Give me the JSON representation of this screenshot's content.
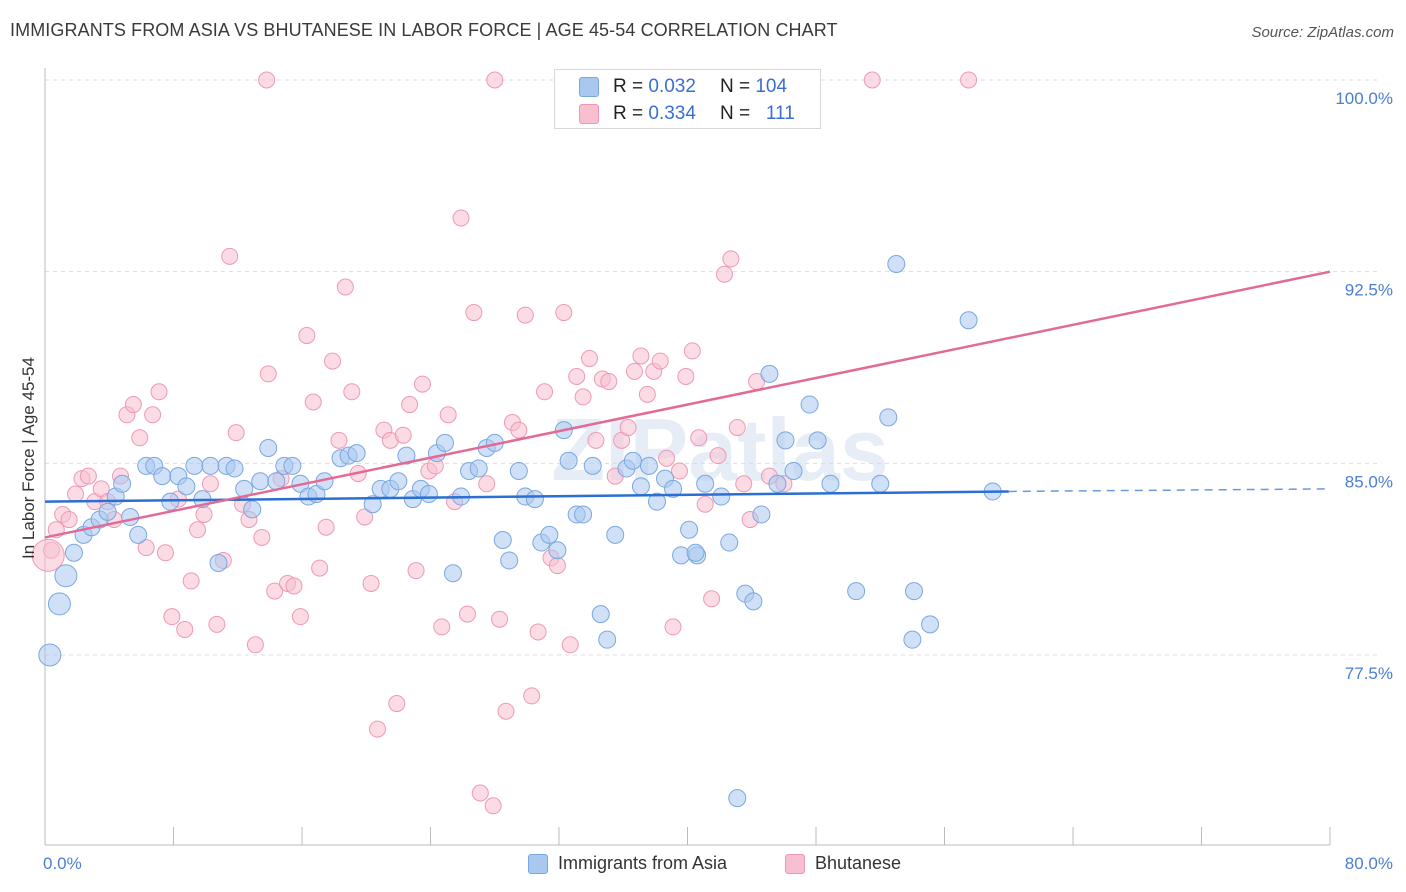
{
  "title": "IMMIGRANTS FROM ASIA VS BHUTANESE IN LABOR FORCE | AGE 45-54 CORRELATION CHART",
  "source": "Source: ZipAtlas.com",
  "watermark": "ZIPatlas",
  "legend": {
    "series1": {
      "r_label": "R =",
      "r_value": "0.032",
      "n_label": "N =",
      "n_value": "104"
    },
    "series2": {
      "r_label": "R =",
      "r_value": "0.334",
      "n_label": "N =",
      "n_value": "111"
    }
  },
  "colors": {
    "asia_fill": "#a9c8f0",
    "asia_stroke": "#7aa7e0",
    "asia_line": "#2a6fd1",
    "bhutan_fill": "#f7bfd0",
    "bhutan_stroke": "#ee99b4",
    "bhutan_line": "#e26a95",
    "tick_text": "#4a7fd0",
    "grid": "#dddddd"
  },
  "chart_data": {
    "type": "scatter",
    "xlabel": "",
    "ylabel": "In Labor Force | Age 45-54",
    "xlim": [
      0,
      80
    ],
    "ylim": [
      71.0,
      101.0
    ],
    "x_tick_labels": [
      "0.0%",
      "80.0%"
    ],
    "y_ticks": [
      77.5,
      85.0,
      92.5,
      100.0
    ],
    "y_tick_labels": [
      "77.5%",
      "85.0%",
      "92.5%",
      "100.0%"
    ],
    "grid": "horizontal dashed",
    "legend_position": "top-center",
    "series": [
      {
        "name": "Immigrants from Asia",
        "trend": {
          "x": [
            0,
            60
          ],
          "y": [
            83.5,
            83.9
          ],
          "dashed_to": [
            80,
            84.0
          ]
        },
        "points": [
          [
            0.3,
            77.5
          ],
          [
            0.9,
            79.5
          ],
          [
            1.3,
            80.6
          ],
          [
            1.8,
            81.5
          ],
          [
            2.4,
            82.2
          ],
          [
            2.9,
            82.5
          ],
          [
            3.4,
            82.8
          ],
          [
            3.9,
            83.1
          ],
          [
            4.4,
            83.7
          ],
          [
            4.8,
            84.2
          ],
          [
            5.3,
            82.9
          ],
          [
            5.8,
            82.2
          ],
          [
            6.3,
            84.9
          ],
          [
            6.8,
            84.9
          ],
          [
            7.3,
            84.5
          ],
          [
            7.8,
            83.5
          ],
          [
            8.3,
            84.5
          ],
          [
            8.8,
            84.1
          ],
          [
            9.3,
            84.9
          ],
          [
            9.8,
            83.6
          ],
          [
            10.3,
            84.9
          ],
          [
            10.8,
            81.1
          ],
          [
            11.3,
            84.9
          ],
          [
            11.8,
            84.8
          ],
          [
            12.4,
            84.0
          ],
          [
            12.9,
            83.2
          ],
          [
            13.4,
            84.3
          ],
          [
            13.9,
            85.6
          ],
          [
            14.4,
            84.3
          ],
          [
            14.9,
            84.9
          ],
          [
            15.4,
            84.9
          ],
          [
            15.9,
            84.2
          ],
          [
            16.4,
            83.7
          ],
          [
            16.9,
            83.8
          ],
          [
            17.4,
            84.3
          ],
          [
            18.4,
            85.2
          ],
          [
            18.9,
            85.3
          ],
          [
            19.4,
            85.4
          ],
          [
            20.4,
            83.4
          ],
          [
            20.9,
            84.0
          ],
          [
            21.5,
            84.0
          ],
          [
            22.0,
            84.3
          ],
          [
            22.5,
            85.3
          ],
          [
            22.9,
            83.6
          ],
          [
            23.4,
            84.0
          ],
          [
            23.9,
            83.8
          ],
          [
            24.4,
            85.4
          ],
          [
            24.9,
            85.8
          ],
          [
            25.4,
            80.7
          ],
          [
            25.9,
            83.7
          ],
          [
            26.4,
            84.7
          ],
          [
            27.0,
            84.8
          ],
          [
            27.5,
            85.6
          ],
          [
            28.0,
            85.8
          ],
          [
            28.5,
            82.0
          ],
          [
            28.9,
            81.2
          ],
          [
            29.5,
            84.7
          ],
          [
            29.9,
            83.7
          ],
          [
            30.5,
            83.6
          ],
          [
            30.9,
            81.9
          ],
          [
            31.4,
            82.2
          ],
          [
            31.9,
            81.6
          ],
          [
            32.3,
            86.3
          ],
          [
            32.6,
            85.1
          ],
          [
            33.1,
            83.0
          ],
          [
            33.5,
            83.0
          ],
          [
            34.1,
            84.9
          ],
          [
            34.6,
            79.1
          ],
          [
            35.0,
            78.1
          ],
          [
            35.5,
            82.2
          ],
          [
            36.2,
            84.8
          ],
          [
            36.6,
            85.1
          ],
          [
            37.1,
            84.1
          ],
          [
            37.6,
            84.9
          ],
          [
            38.1,
            83.5
          ],
          [
            38.6,
            84.4
          ],
          [
            39.1,
            84.0
          ],
          [
            39.6,
            81.4
          ],
          [
            40.1,
            82.4
          ],
          [
            40.6,
            81.4
          ],
          [
            41.1,
            84.2
          ],
          [
            42.1,
            83.7
          ],
          [
            42.6,
            81.9
          ],
          [
            43.1,
            71.9
          ],
          [
            43.6,
            79.9
          ],
          [
            44.1,
            79.6
          ],
          [
            44.6,
            83.0
          ],
          [
            45.1,
            88.5
          ],
          [
            45.6,
            84.2
          ],
          [
            46.1,
            85.9
          ],
          [
            46.6,
            84.7
          ],
          [
            47.6,
            87.3
          ],
          [
            48.1,
            85.9
          ],
          [
            48.9,
            84.2
          ],
          [
            50.5,
            80.0
          ],
          [
            52.0,
            84.2
          ],
          [
            52.5,
            86.8
          ],
          [
            53.0,
            92.8
          ],
          [
            54.1,
            80.0
          ],
          [
            55.1,
            78.7
          ],
          [
            57.5,
            90.6
          ],
          [
            59.0,
            83.9
          ],
          [
            40.5,
            81.5
          ],
          [
            54.0,
            78.1
          ]
        ]
      },
      {
        "name": "Bhutanese",
        "trend": {
          "x": [
            0,
            80
          ],
          "y": [
            82.1,
            92.5
          ]
        },
        "points": [
          [
            0.4,
            81.6
          ],
          [
            0.7,
            82.4
          ],
          [
            1.1,
            83.0
          ],
          [
            1.5,
            82.8
          ],
          [
            1.9,
            83.8
          ],
          [
            2.3,
            84.4
          ],
          [
            2.7,
            84.5
          ],
          [
            3.1,
            83.5
          ],
          [
            3.5,
            84.0
          ],
          [
            3.9,
            83.5
          ],
          [
            4.3,
            82.8
          ],
          [
            4.7,
            84.5
          ],
          [
            5.1,
            86.9
          ],
          [
            5.5,
            87.3
          ],
          [
            5.9,
            86.0
          ],
          [
            6.3,
            81.7
          ],
          [
            6.7,
            86.9
          ],
          [
            7.1,
            87.8
          ],
          [
            7.5,
            81.5
          ],
          [
            7.9,
            79.0
          ],
          [
            8.3,
            83.6
          ],
          [
            8.7,
            78.5
          ],
          [
            9.1,
            80.4
          ],
          [
            9.5,
            82.4
          ],
          [
            9.9,
            83.0
          ],
          [
            10.3,
            84.2
          ],
          [
            10.7,
            78.7
          ],
          [
            11.1,
            81.2
          ],
          [
            11.5,
            93.1
          ],
          [
            11.9,
            86.2
          ],
          [
            12.3,
            83.4
          ],
          [
            12.7,
            82.8
          ],
          [
            13.1,
            77.9
          ],
          [
            13.5,
            82.1
          ],
          [
            13.9,
            88.5
          ],
          [
            14.3,
            80.0
          ],
          [
            14.7,
            84.4
          ],
          [
            15.1,
            80.3
          ],
          [
            15.5,
            80.2
          ],
          [
            15.9,
            79.0
          ],
          [
            16.3,
            90.0
          ],
          [
            16.7,
            87.4
          ],
          [
            17.1,
            80.9
          ],
          [
            17.5,
            82.5
          ],
          [
            17.9,
            89.0
          ],
          [
            18.3,
            85.9
          ],
          [
            18.7,
            91.9
          ],
          [
            19.1,
            87.8
          ],
          [
            19.5,
            84.6
          ],
          [
            19.9,
            82.9
          ],
          [
            20.3,
            80.3
          ],
          [
            20.7,
            74.6
          ],
          [
            21.1,
            86.3
          ],
          [
            21.5,
            85.9
          ],
          [
            21.9,
            75.6
          ],
          [
            22.3,
            86.1
          ],
          [
            22.7,
            87.3
          ],
          [
            23.1,
            80.8
          ],
          [
            23.5,
            88.1
          ],
          [
            23.9,
            84.7
          ],
          [
            24.3,
            84.9
          ],
          [
            24.7,
            78.6
          ],
          [
            25.1,
            86.9
          ],
          [
            25.5,
            83.5
          ],
          [
            25.9,
            94.6
          ],
          [
            26.3,
            79.1
          ],
          [
            26.7,
            90.9
          ],
          [
            27.1,
            72.1
          ],
          [
            27.5,
            84.2
          ],
          [
            27.9,
            71.6
          ],
          [
            28.3,
            78.9
          ],
          [
            28.7,
            75.3
          ],
          [
            29.1,
            86.6
          ],
          [
            29.5,
            86.3
          ],
          [
            29.9,
            90.8
          ],
          [
            30.3,
            75.9
          ],
          [
            30.7,
            78.4
          ],
          [
            31.1,
            87.8
          ],
          [
            31.5,
            81.3
          ],
          [
            31.9,
            81.0
          ],
          [
            32.3,
            90.9
          ],
          [
            32.7,
            77.9
          ],
          [
            33.1,
            88.4
          ],
          [
            33.5,
            87.6
          ],
          [
            33.9,
            89.1
          ],
          [
            34.3,
            85.9
          ],
          [
            34.7,
            88.3
          ],
          [
            35.1,
            88.2
          ],
          [
            35.5,
            84.5
          ],
          [
            35.9,
            85.9
          ],
          [
            36.3,
            86.4
          ],
          [
            36.7,
            88.6
          ],
          [
            37.1,
            89.2
          ],
          [
            37.5,
            87.7
          ],
          [
            37.9,
            88.6
          ],
          [
            38.3,
            89.0
          ],
          [
            38.7,
            85.2
          ],
          [
            39.1,
            78.6
          ],
          [
            39.5,
            84.7
          ],
          [
            39.9,
            88.4
          ],
          [
            40.3,
            89.4
          ],
          [
            40.7,
            86.0
          ],
          [
            41.1,
            83.4
          ],
          [
            41.5,
            79.7
          ],
          [
            41.9,
            85.3
          ],
          [
            42.3,
            92.4
          ],
          [
            42.7,
            93.0
          ],
          [
            43.1,
            86.4
          ],
          [
            43.5,
            84.2
          ],
          [
            43.9,
            82.8
          ],
          [
            44.3,
            88.2
          ],
          [
            45.1,
            84.5
          ],
          [
            46.0,
            84.2
          ]
        ],
        "top_points": [
          [
            13.8,
            100.0
          ],
          [
            28.0,
            100.0
          ],
          [
            51.5,
            100.0
          ],
          [
            57.5,
            100.0
          ]
        ]
      }
    ]
  },
  "bottom_legend": {
    "asia": "Immigrants from Asia",
    "bhutan": "Bhutanese"
  }
}
